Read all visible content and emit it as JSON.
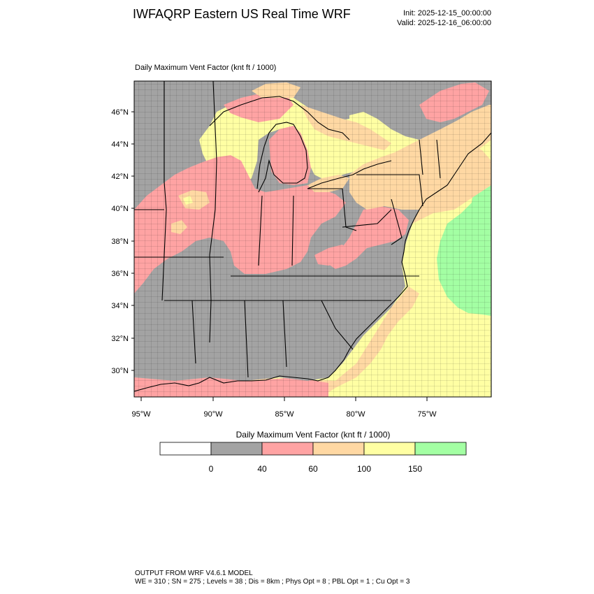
{
  "header": {
    "title": "IWFAQRP Eastern US Real Time WRF",
    "init": "Init: 2025-12-15_00:00:00",
    "valid": "Valid: 2025-12-16_06:00:00"
  },
  "plot": {
    "subtitle": "Daily Maximum Vent Factor   (knt ft / 1000)",
    "lat_labels": [
      "46°N",
      "44°N",
      "42°N",
      "40°N",
      "38°N",
      "36°N",
      "34°N",
      "32°N",
      "30°N"
    ],
    "lon_labels": [
      "95°W",
      "90°W",
      "85°W",
      "80°W",
      "75°W"
    ]
  },
  "colorbar": {
    "title": "Daily Maximum Vent Factor  (knt ft / 1000)",
    "labels": [
      "0",
      "40",
      "60",
      "100",
      "150"
    ],
    "colors": [
      "#ffffff",
      "#a3a3a3",
      "#ffa3a3",
      "#ffd8a3",
      "#ffffa3",
      "#a3ffa3"
    ]
  },
  "colors": {
    "land_low": "#a3a3a3",
    "cat40": "#ffa3a3",
    "cat60": "#ffd8a3",
    "cat100": "#ffffa3",
    "cat150": "#a3ffa3"
  },
  "footer": {
    "line1": "OUTPUT FROM WRF V4.6.1 MODEL",
    "line2": "WE = 310 ; SN = 275 ; Levels = 38 ; Dis = 8km ; Phys Opt = 8 ; PBL Opt = 1 ; Cu Opt = 3"
  }
}
